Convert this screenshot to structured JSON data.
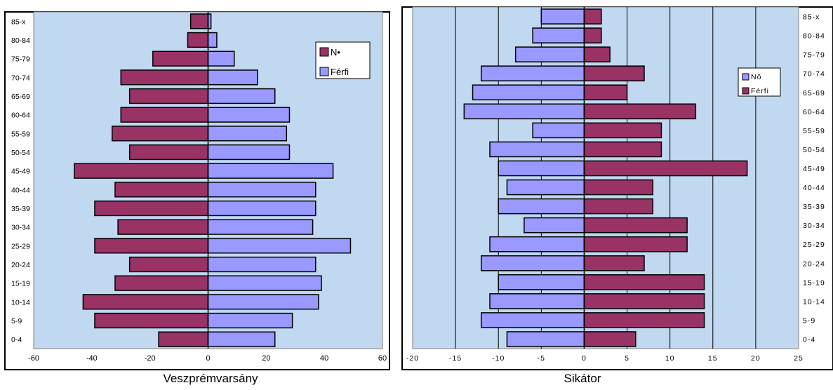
{
  "colors": {
    "plot_bg": "#c0d8f0",
    "male_bar": "#9999ff",
    "female_bar": "#993366",
    "frame": "#000000"
  },
  "chart_data": [
    {
      "type": "bar",
      "orientation": "horizontal",
      "layout": "population-pyramid",
      "caption": "Veszprémvarsány",
      "categories": [
        "0-4",
        "5-9",
        "10-14",
        "15-19",
        "20-24",
        "25-29",
        "30-34",
        "35-39",
        "40-44",
        "45-49",
        "50-54",
        "55-59",
        "60-64",
        "65-69",
        "70-74",
        "75-79",
        "80-84",
        "85-x"
      ],
      "series": [
        {
          "name": "N•",
          "side": "left",
          "color": "#993366",
          "values": [
            -17,
            -39,
            -43,
            -32,
            -27,
            -39,
            -31,
            -39,
            -32,
            -46,
            -27,
            -33,
            -30,
            -27,
            -30,
            -19,
            -7,
            -6
          ]
        },
        {
          "name": "Férfi",
          "side": "right",
          "color": "#9999ff",
          "values": [
            23,
            29,
            38,
            39,
            37,
            49,
            36,
            37,
            37,
            43,
            28,
            27,
            28,
            23,
            17,
            9,
            3,
            1
          ]
        }
      ],
      "xlim": [
        -60,
        60
      ],
      "xticks": [
        -60,
        -40,
        -20,
        0,
        20,
        40,
        60
      ],
      "tick_labels": [
        "-60",
        "-40",
        "-20",
        "0",
        "20",
        "40",
        "60"
      ],
      "grid": false,
      "legend": "top-right"
    },
    {
      "type": "bar",
      "orientation": "horizontal",
      "layout": "population-pyramid",
      "caption": "Sikátor",
      "categories": [
        "0-4",
        "5-9",
        "10-14",
        "15-19",
        "20-24",
        "25-29",
        "30-34",
        "35-39",
        "40-44",
        "45-49",
        "50-54",
        "55-59",
        "60-64",
        "65-69",
        "70-74",
        "75-79",
        "80-84",
        "85-x"
      ],
      "series": [
        {
          "name": "Nõ",
          "side": "left",
          "color": "#9999ff",
          "values": [
            -9,
            -12,
            -11,
            -10,
            -12,
            -11,
            -7,
            -10,
            -9,
            -10,
            -11,
            -6,
            -14,
            -13,
            -12,
            -8,
            -6,
            -5
          ]
        },
        {
          "name": "Férfi",
          "side": "right",
          "color": "#993366",
          "values": [
            6,
            14,
            14,
            14,
            7,
            12,
            12,
            8,
            8,
            19,
            9,
            9,
            13,
            5,
            7,
            3,
            2,
            2
          ]
        }
      ],
      "xlim": [
        -20,
        25
      ],
      "xticks": [
        -20,
        -15,
        -10,
        -5,
        0,
        5,
        10,
        15,
        20,
        25
      ],
      "tick_labels": [
        "-20",
        "-15",
        "-10",
        "-5",
        "0",
        "5",
        "10",
        "15",
        "20",
        "25"
      ],
      "grid": true,
      "legend": "top-right"
    }
  ]
}
